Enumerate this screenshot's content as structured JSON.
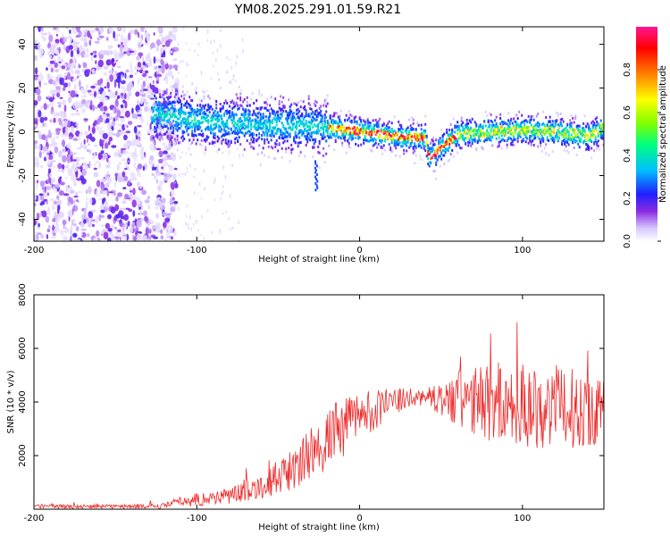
{
  "chart_data": [
    {
      "type": "heatmap",
      "title": "YM08.2025.291.01.59.R21",
      "xlabel": "Height of straight line (km)",
      "ylabel": "Frequency (Hz)",
      "xlim": [
        -200,
        150
      ],
      "ylim": [
        -50,
        48
      ],
      "xticks": [
        "-200",
        "-100",
        "0",
        "100"
      ],
      "yticks": [
        "40",
        "20",
        "0",
        "-20",
        "-40"
      ],
      "colorbar": {
        "label": "Normalized spectral amplitude",
        "range": [
          0,
          1
        ],
        "ticks": [
          "0.0",
          "0.2",
          "0.4",
          "0.6",
          "0.8"
        ]
      },
      "ridge": {
        "description_points_x": [
          -125,
          -100,
          -80,
          -60,
          -40,
          -20,
          0,
          20,
          40,
          42,
          60,
          80,
          100,
          120,
          140,
          150
        ],
        "center_frequency_hz": [
          8,
          5,
          4,
          3,
          3,
          2,
          0,
          -2,
          -3,
          -12,
          -1,
          0,
          1,
          0,
          -2,
          2
        ]
      }
    },
    {
      "type": "line",
      "xlabel": "Height of straight line (km)",
      "ylabel": "SNR (10 * v/v)",
      "xlim": [
        -200,
        150
      ],
      "ylim": [
        0,
        8000
      ],
      "xticks": [
        "-200",
        "-100",
        "0",
        "100"
      ],
      "yticks": [
        "8000",
        "6000",
        "4000",
        "2000"
      ],
      "series": [
        {
          "name": "SNR",
          "color": "#ee2a2a",
          "x": [
            -200,
            -150,
            -120,
            -110,
            -100,
            -80,
            -60,
            -40,
            -20,
            0,
            20,
            40,
            50,
            60,
            80,
            100,
            120,
            150
          ],
          "y": [
            100,
            100,
            120,
            300,
            350,
            500,
            900,
            1500,
            2600,
            3500,
            4000,
            4200,
            4100,
            4000,
            4000,
            3900,
            3800,
            3700
          ],
          "spread": [
            80,
            80,
            100,
            200,
            250,
            300,
            500,
            800,
            1200,
            1000,
            500,
            300,
            600,
            1200,
            1500,
            1600,
            1600,
            1300
          ]
        }
      ]
    }
  ]
}
